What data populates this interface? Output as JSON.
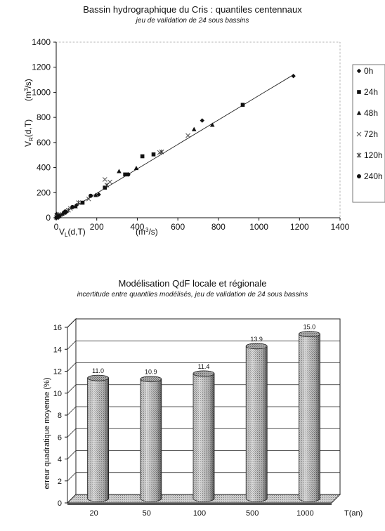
{
  "chart_data": [
    {
      "type": "scatter",
      "title": "Bassin hydrographique du Cris : quantiles centennaux",
      "subtitle": "jeu de validation de 24 sous bassins",
      "xlabel": "V",
      "xlabel_sub": "L",
      "xlabel_rest": "(d,T)",
      "xunit": "(m",
      "xunit_sup": "3",
      "xunit_end": "/s)",
      "ylabel": "V",
      "ylabel_sub": "R",
      "ylabel_rest": "(d,T)",
      "yunit": "(m",
      "yunit_sup": "3",
      "yunit_end": "/s)",
      "xlim": [
        0,
        1400
      ],
      "ylim": [
        0,
        1400
      ],
      "xticks": [
        0,
        200,
        400,
        600,
        800,
        1000,
        1200,
        1400
      ],
      "yticks": [
        0,
        200,
        400,
        600,
        800,
        1000,
        1200,
        1400
      ],
      "grid": false,
      "legend_position": "right",
      "trendline": [
        [
          0,
          0
        ],
        [
          1170,
          1140
        ]
      ],
      "series": [
        {
          "name": "0h",
          "marker": "diamond",
          "points": [
            [
              1170,
              1130
            ],
            [
              720,
              775
            ],
            [
              210,
              185
            ],
            [
              100,
              100
            ],
            [
              50,
              45
            ],
            [
              20,
              20
            ],
            [
              5,
              5
            ],
            [
              2,
              30
            ]
          ]
        },
        {
          "name": "24h",
          "marker": "square",
          "points": [
            [
              920,
              900
            ],
            [
              480,
              505
            ],
            [
              425,
              490
            ],
            [
              340,
              345
            ],
            [
              240,
              240
            ],
            [
              130,
              120
            ],
            [
              40,
              40
            ],
            [
              10,
              15
            ]
          ]
        },
        {
          "name": "48h",
          "marker": "triangle",
          "points": [
            [
              770,
              740
            ],
            [
              680,
              705
            ],
            [
              395,
              395
            ],
            [
              310,
              370
            ],
            [
              195,
              180
            ],
            [
              95,
              90
            ],
            [
              30,
              30
            ],
            [
              5,
              5
            ]
          ]
        },
        {
          "name": "72h",
          "marker": "x",
          "points": [
            [
              650,
              655
            ],
            [
              510,
              520
            ],
            [
              265,
              285
            ],
            [
              240,
              305
            ],
            [
              160,
              150
            ],
            [
              70,
              75
            ],
            [
              15,
              20
            ],
            [
              3,
              2
            ]
          ]
        },
        {
          "name": "120h",
          "marker": "star",
          "points": [
            [
              520,
              525
            ],
            [
              250,
              260
            ],
            [
              110,
              120
            ],
            [
              60,
              60
            ],
            [
              20,
              25
            ],
            [
              8,
              10
            ],
            [
              2,
              3
            ]
          ]
        },
        {
          "name": "240h",
          "marker": "circle",
          "points": [
            [
              355,
              345
            ],
            [
              170,
              175
            ],
            [
              80,
              85
            ],
            [
              45,
              50
            ],
            [
              15,
              12
            ],
            [
              4,
              4
            ],
            [
              1,
              1
            ]
          ]
        }
      ]
    },
    {
      "type": "bar",
      "title": "Modélisation QdF locale et régionale",
      "subtitle": "incertitude entre quantiles modélisés, jeu de validation de 24 sous bassins",
      "xlabel": "T(an)",
      "ylabel": "erreur quadratique moyenne (%)",
      "categories": [
        "20",
        "50",
        "100",
        "500",
        "1000"
      ],
      "values": [
        11.0,
        10.9,
        11.4,
        13.9,
        15.0
      ],
      "value_labels": [
        "11.0",
        "10.9",
        "11.4",
        "13.9",
        "15.0"
      ],
      "ylim": [
        0,
        16
      ],
      "yticks": [
        0,
        2,
        4,
        6,
        8,
        10,
        12,
        14,
        16
      ],
      "grid": true,
      "style": "3d-cylinder"
    }
  ]
}
